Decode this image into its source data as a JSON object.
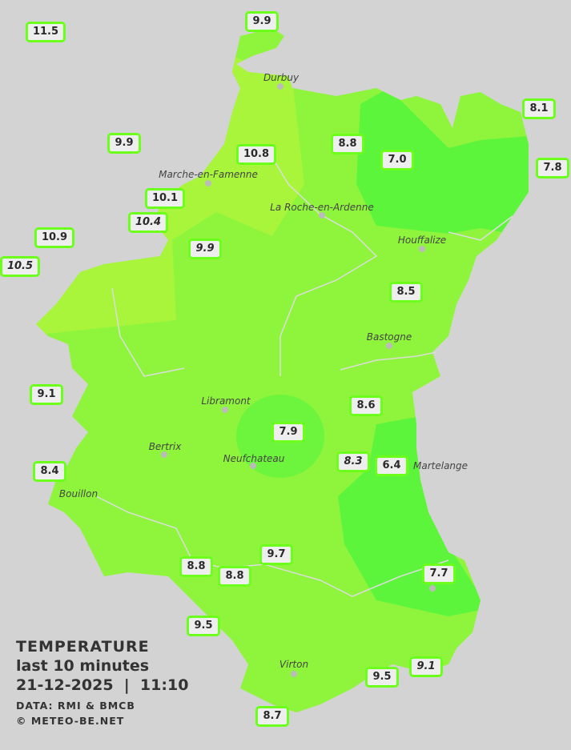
{
  "legend": {
    "title": "TEMPERATURE",
    "period": "last 10 minutes",
    "datetime": "21-12-2025  |  11:10",
    "source": "DATA: RMI & BMCB",
    "copyright": "© METEO-BE.NET"
  },
  "colors": {
    "background": "#d3d3d3",
    "zone_main": "#8ef53c",
    "zone_warm": "#a8f53c",
    "zone_cool": "#5cf53c",
    "label_border": "#6cff1c"
  },
  "cities": [
    "Durbuy",
    "Marche-en-Famenne",
    "La Roche-en-Ardenne",
    "Houffalize",
    "Bastogne",
    "Libramont",
    "Bertrix",
    "Neufchateau",
    "Bouillon",
    "Virton",
    "Martelange"
  ],
  "stations": [
    {
      "value": "11.5",
      "italic": false
    },
    {
      "value": "9.9",
      "italic": false
    },
    {
      "value": "8.1",
      "italic": false
    },
    {
      "value": "9.9",
      "italic": false
    },
    {
      "value": "10.8",
      "italic": false
    },
    {
      "value": "8.8",
      "italic": false
    },
    {
      "value": "7.0",
      "italic": false
    },
    {
      "value": "7.8",
      "italic": false
    },
    {
      "value": "10.1",
      "italic": false
    },
    {
      "value": "10.4",
      "italic": true
    },
    {
      "value": "10.9",
      "italic": false
    },
    {
      "value": "10.5",
      "italic": true
    },
    {
      "value": "9.9",
      "italic": true
    },
    {
      "value": "8.5",
      "italic": false
    },
    {
      "value": "9.1",
      "italic": false
    },
    {
      "value": "8.6",
      "italic": false
    },
    {
      "value": "7.9",
      "italic": false
    },
    {
      "value": "8.3",
      "italic": true
    },
    {
      "value": "6.4",
      "italic": false
    },
    {
      "value": "8.4",
      "italic": false
    },
    {
      "value": "9.7",
      "italic": false
    },
    {
      "value": "8.8",
      "italic": false
    },
    {
      "value": "8.8",
      "italic": false
    },
    {
      "value": "7.7",
      "italic": false
    },
    {
      "value": "9.5",
      "italic": false
    },
    {
      "value": "9.5",
      "italic": false
    },
    {
      "value": "9.1",
      "italic": true
    },
    {
      "value": "8.7",
      "italic": false
    }
  ]
}
